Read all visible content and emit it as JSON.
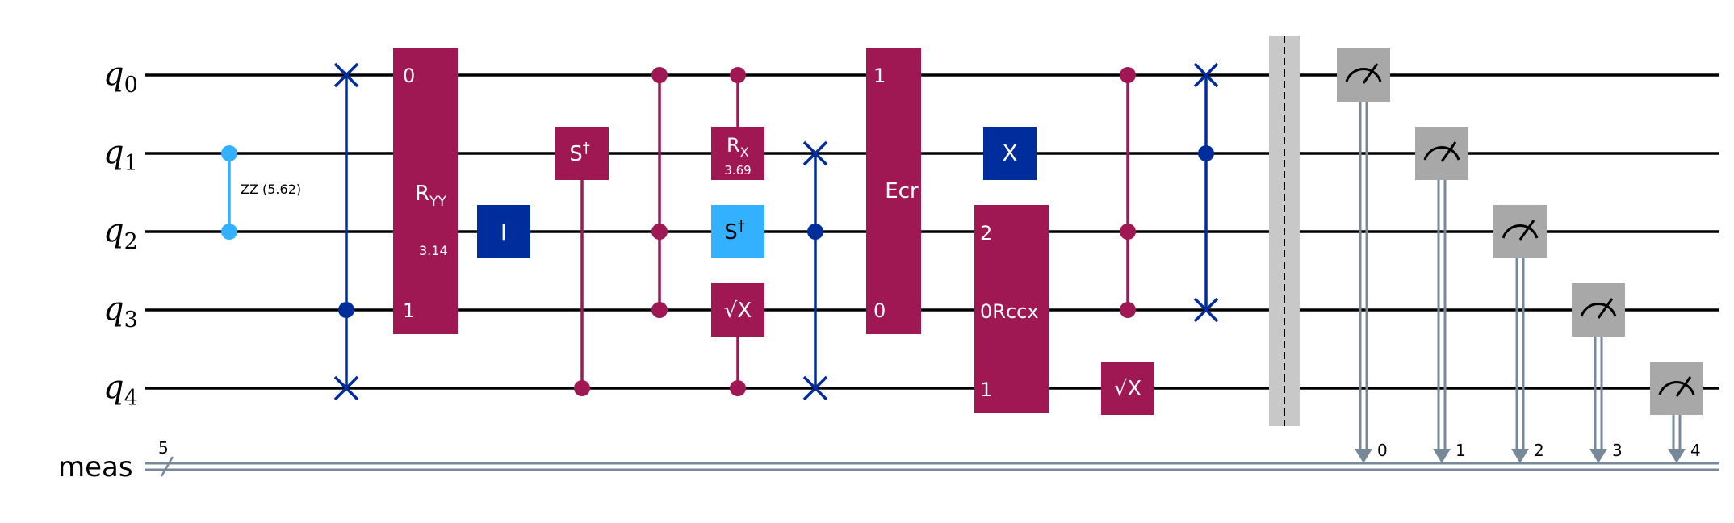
{
  "diagram": {
    "qubits": [
      "q",
      "q",
      "q",
      "q",
      "q"
    ],
    "qubit_indices": [
      "0",
      "1",
      "2",
      "3",
      "4"
    ],
    "classical_register": {
      "name": "meas",
      "size": "5"
    },
    "colors": {
      "purple": "#9f1853",
      "dark_blue": "#002d9c",
      "light_blue": "#33b1ff",
      "gray": "#a8a8a8",
      "barrier": "#c8c8c8",
      "classical": "#778899"
    },
    "gates": {
      "rzz": {
        "label": "ZZ (5.62)"
      },
      "ryy": {
        "label": "R",
        "sub": "YY",
        "param": "3.14",
        "pin_top": "0",
        "pin_bottom": "1"
      },
      "id": {
        "label": "I"
      },
      "sdg1": {
        "label": "S",
        "sup": "†"
      },
      "rx": {
        "label": "R",
        "sub": "X",
        "param": "3.69"
      },
      "sdg2": {
        "label": "S",
        "sup": "†"
      },
      "sx1": {
        "label": "√X"
      },
      "ecr": {
        "label": "Ecr",
        "pin_top": "1",
        "pin_bottom": "0"
      },
      "x": {
        "label": "X"
      },
      "rccx": {
        "label": "Rccx",
        "pin_top": "2",
        "pin_mid": "0",
        "pin_bottom": "1"
      },
      "sx2": {
        "label": "√X"
      }
    },
    "measure_bits": [
      "0",
      "1",
      "2",
      "3",
      "4"
    ]
  }
}
